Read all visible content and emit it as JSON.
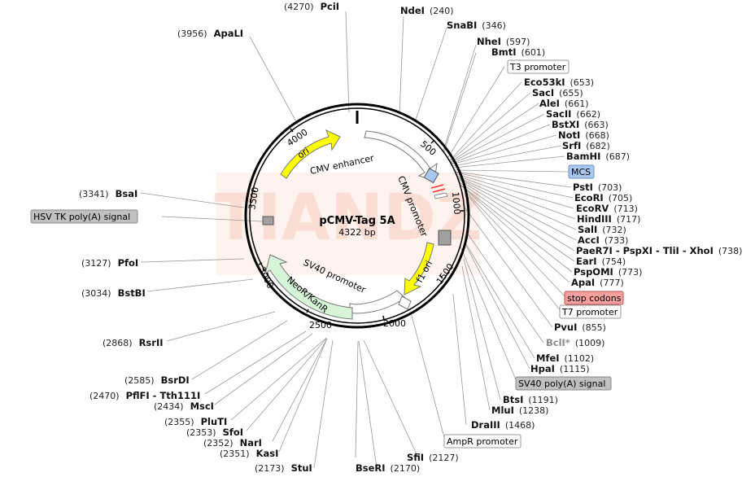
{
  "plasmid": {
    "name": "pCMV-Tag 5A",
    "size_label": "4322 bp"
  },
  "watermark": "TIANDZ",
  "ticks": [
    "500",
    "1000",
    "1500",
    "2000",
    "2500",
    "3000",
    "3500",
    "4000"
  ],
  "features": {
    "cmv_enhancer": "CMV enhancer",
    "cmv_promoter": "CMV promoter",
    "sv40_promoter": "SV40 promoter",
    "neo": "NeoR/KanR",
    "ori": "ori",
    "f1_ori": "f1 ori"
  },
  "sites": {
    "pcii": {
      "pos": "(4270)",
      "name": "PciI"
    },
    "ndei": {
      "name": "NdeI",
      "pos": "(240)"
    },
    "snabi": {
      "name": "SnaBI",
      "pos": "(346)"
    },
    "apali": {
      "pos": "(3956)",
      "name": "ApaLI"
    },
    "nhei": {
      "name": "NheI",
      "pos": "(597)"
    },
    "bmti": {
      "name": "BmtI",
      "pos": "(601)"
    },
    "eco53ki": {
      "name": "Eco53kI",
      "pos": "(653)"
    },
    "saci": {
      "name": "SacI",
      "pos": "(655)"
    },
    "alei": {
      "name": "AleI",
      "pos": "(661)"
    },
    "sacii": {
      "name": "SacII",
      "pos": "(662)"
    },
    "bstxi": {
      "name": "BstXI",
      "pos": "(663)"
    },
    "noti": {
      "name": "NotI",
      "pos": "(668)"
    },
    "srfi": {
      "name": "SrfI",
      "pos": "(682)"
    },
    "bamhi": {
      "name": "BamHI",
      "pos": "(687)"
    },
    "psti": {
      "name": "PstI",
      "pos": "(703)"
    },
    "ecori": {
      "name": "EcoRI",
      "pos": "(705)"
    },
    "ecorv": {
      "name": "EcoRV",
      "pos": "(713)"
    },
    "hindiii": {
      "name": "HindIII",
      "pos": "(717)"
    },
    "sali": {
      "name": "SalI",
      "pos": "(732)"
    },
    "acci": {
      "name": "AccI",
      "pos": "(733)"
    },
    "paer7i": {
      "name": "PaeR7I - PspXI - TliI - XhoI",
      "pos": "(738)"
    },
    "eari": {
      "name": "EarI",
      "pos": "(754)"
    },
    "pspomi": {
      "name": "PspOMI",
      "pos": "(773)"
    },
    "apai": {
      "name": "ApaI",
      "pos": "(777)"
    },
    "pvui": {
      "name": "PvuI",
      "pos": "(855)"
    },
    "bcli": {
      "name": "BclI*",
      "pos": "(1009)"
    },
    "mfei": {
      "name": "MfeI",
      "pos": "(1102)"
    },
    "hpai": {
      "name": "HpaI",
      "pos": "(1115)"
    },
    "btsi": {
      "name": "BtsI",
      "pos": "(1191)"
    },
    "mlui": {
      "name": "MluI",
      "pos": "(1238)"
    },
    "draiii": {
      "name": "DraIII",
      "pos": "(1468)"
    },
    "sfii": {
      "name": "SfiI",
      "pos": "(2127)"
    },
    "bseri": {
      "name": "BseRI",
      "pos": "(2170)"
    },
    "stui": {
      "pos": "(2173)",
      "name": "StuI"
    },
    "kasi": {
      "pos": "(2351)",
      "name": "KasI"
    },
    "nari": {
      "pos": "(2352)",
      "name": "NarI"
    },
    "sfoi": {
      "pos": "(2353)",
      "name": "SfoI"
    },
    "pluti": {
      "pos": "(2355)",
      "name": "PluTI"
    },
    "msci": {
      "pos": "(2434)",
      "name": "MscI"
    },
    "pflfi": {
      "pos": "(2470)",
      "name": "PflFI - Tth111I"
    },
    "bsrdi": {
      "pos": "(2585)",
      "name": "BsrDI"
    },
    "rsrii": {
      "pos": "(2868)",
      "name": "RsrII"
    },
    "bstbi": {
      "pos": "(3034)",
      "name": "BstBI"
    },
    "pfoi": {
      "pos": "(3127)",
      "name": "PfoI"
    },
    "bsai": {
      "pos": "(3341)",
      "name": "BsaI"
    }
  },
  "boxed": {
    "t3": "T3 promoter",
    "mcs": "MCS",
    "hsv": "HSV TK poly(A) signal",
    "stop": "stop codons",
    "t7": "T7 promoter",
    "sv40pa": "SV40 poly(A) signal",
    "ampr": "AmpR promoter"
  },
  "colors": {
    "ori": "#ffff00",
    "neo": "#d6f5d6",
    "mcs_box": "#a8c8f0",
    "stop_box": "#f4a0a0",
    "grey_box": "#c0c0c0",
    "watermark": "#f7c3b3"
  }
}
